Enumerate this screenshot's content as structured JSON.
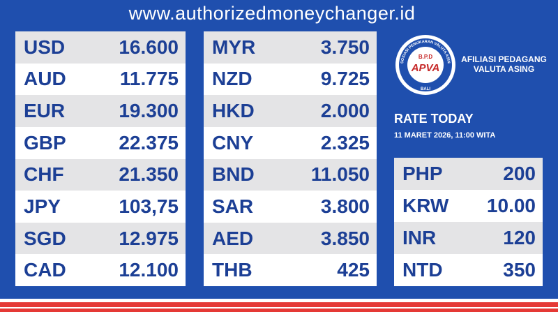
{
  "header": {
    "url": "www.authorizedmoneychanger.id"
  },
  "tables": [
    {
      "rows": [
        [
          "USD",
          "16.600"
        ],
        [
          "AUD",
          "11.775"
        ],
        [
          "EUR",
          "19.300"
        ],
        [
          "GBP",
          "22.375"
        ],
        [
          "CHF",
          "21.350"
        ],
        [
          "JPY",
          "103,75"
        ],
        [
          "SGD",
          "12.975"
        ],
        [
          "CAD",
          "12.100"
        ]
      ]
    },
    {
      "rows": [
        [
          "MYR",
          "3.750"
        ],
        [
          "NZD",
          "9.725"
        ],
        [
          "HKD",
          "2.000"
        ],
        [
          "CNY",
          "2.325"
        ],
        [
          "BND",
          "11.050"
        ],
        [
          "SAR",
          "3.800"
        ],
        [
          "AED",
          "3.850"
        ],
        [
          "THB",
          "425"
        ]
      ]
    }
  ],
  "logo": {
    "initials": "B.P.D",
    "name": "APVA",
    "ring_text": "ASOSIASI PENUKARAN VALUTA ASING",
    "region": "BALI",
    "caption": [
      "AFILIASI PEDAGANG",
      "VALUTA ASING"
    ]
  },
  "rate": {
    "title": "RATE TODAY",
    "date": "11 MARET 2026, 11:00 WITA"
  },
  "side_table": {
    "rows": [
      [
        "PHP",
        "200"
      ],
      [
        "KRW",
        "10.00"
      ],
      [
        "INR",
        "120"
      ],
      [
        "NTD",
        "350"
      ]
    ]
  }
}
